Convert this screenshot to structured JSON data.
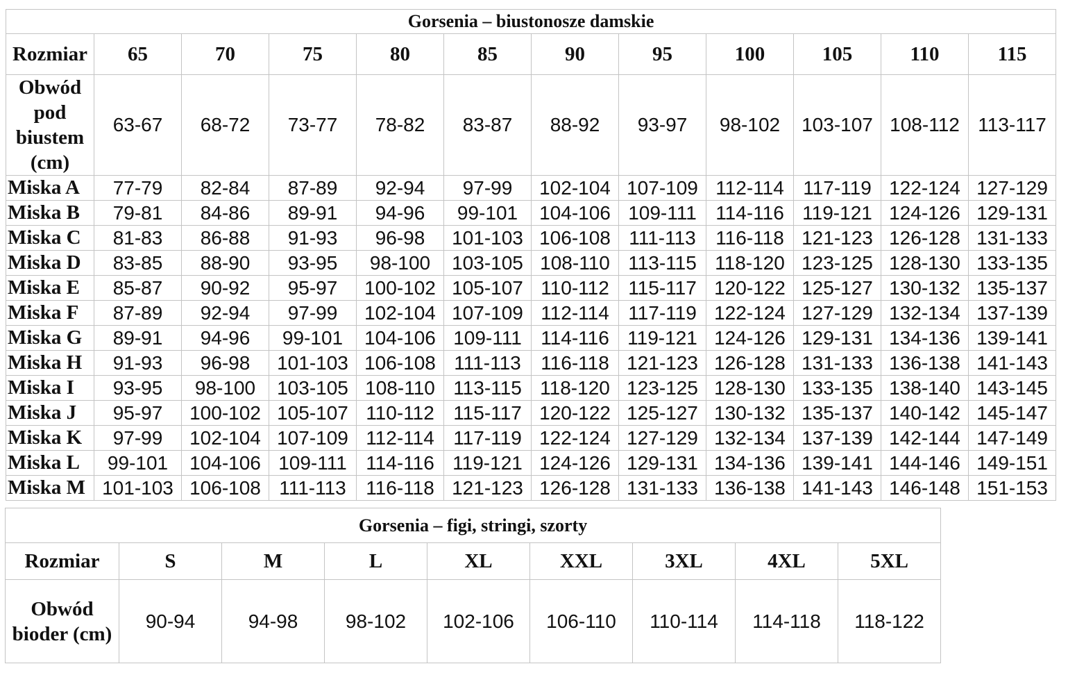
{
  "bras": {
    "title": "Gorsenia – biustonosze damskie",
    "header_label": "Rozmiar",
    "sizes": [
      "65",
      "70",
      "75",
      "80",
      "85",
      "90",
      "95",
      "100",
      "105",
      "110",
      "115"
    ],
    "underbust_label": "Obwód pod biustem (cm)",
    "underbust": [
      "63-67",
      "68-72",
      "73-77",
      "78-82",
      "83-87",
      "88-92",
      "93-97",
      "98-102",
      "103-107",
      "108-112",
      "113-117"
    ],
    "cups": [
      {
        "label": "Miska A",
        "values": [
          "77-79",
          "82-84",
          "87-89",
          "92-94",
          "97-99",
          "102-104",
          "107-109",
          "112-114",
          "117-119",
          "122-124",
          "127-129"
        ]
      },
      {
        "label": "Miska B",
        "values": [
          "79-81",
          "84-86",
          "89-91",
          "94-96",
          "99-101",
          "104-106",
          "109-111",
          "114-116",
          "119-121",
          "124-126",
          "129-131"
        ]
      },
      {
        "label": "Miska C",
        "values": [
          "81-83",
          "86-88",
          "91-93",
          "96-98",
          "101-103",
          "106-108",
          "111-113",
          "116-118",
          "121-123",
          "126-128",
          "131-133"
        ]
      },
      {
        "label": "Miska D",
        "values": [
          "83-85",
          "88-90",
          "93-95",
          "98-100",
          "103-105",
          "108-110",
          "113-115",
          "118-120",
          "123-125",
          "128-130",
          "133-135"
        ]
      },
      {
        "label": "Miska E",
        "values": [
          "85-87",
          "90-92",
          "95-97",
          "100-102",
          "105-107",
          "110-112",
          "115-117",
          "120-122",
          "125-127",
          "130-132",
          "135-137"
        ]
      },
      {
        "label": "Miska F",
        "values": [
          "87-89",
          "92-94",
          "97-99",
          "102-104",
          "107-109",
          "112-114",
          "117-119",
          "122-124",
          "127-129",
          "132-134",
          "137-139"
        ]
      },
      {
        "label": "Miska G",
        "values": [
          "89-91",
          "94-96",
          "99-101",
          "104-106",
          "109-111",
          "114-116",
          "119-121",
          "124-126",
          "129-131",
          "134-136",
          "139-141"
        ]
      },
      {
        "label": "Miska H",
        "values": [
          "91-93",
          "96-98",
          "101-103",
          "106-108",
          "111-113",
          "116-118",
          "121-123",
          "126-128",
          "131-133",
          "136-138",
          "141-143"
        ]
      },
      {
        "label": "Miska I",
        "values": [
          "93-95",
          "98-100",
          "103-105",
          "108-110",
          "113-115",
          "118-120",
          "123-125",
          "128-130",
          "133-135",
          "138-140",
          "143-145"
        ]
      },
      {
        "label": "Miska J",
        "values": [
          "95-97",
          "100-102",
          "105-107",
          "110-112",
          "115-117",
          "120-122",
          "125-127",
          "130-132",
          "135-137",
          "140-142",
          "145-147"
        ]
      },
      {
        "label": "Miska K",
        "values": [
          "97-99",
          "102-104",
          "107-109",
          "112-114",
          "117-119",
          "122-124",
          "127-129",
          "132-134",
          "137-139",
          "142-144",
          "147-149"
        ]
      },
      {
        "label": "Miska L",
        "values": [
          "99-101",
          "104-106",
          "109-111",
          "114-116",
          "119-121",
          "124-126",
          "129-131",
          "134-136",
          "139-141",
          "144-146",
          "149-151"
        ]
      },
      {
        "label": "Miska M",
        "values": [
          "101-103",
          "106-108",
          "111-113",
          "116-118",
          "121-123",
          "126-128",
          "131-133",
          "136-138",
          "141-143",
          "146-148",
          "151-153"
        ]
      }
    ]
  },
  "briefs": {
    "title": "Gorsenia – figi, stringi, szorty",
    "header_label": "Rozmiar",
    "sizes": [
      "S",
      "M",
      "L",
      "XL",
      "XXL",
      "3XL",
      "4XL",
      "5XL"
    ],
    "hips_label": "Obwód bioder (cm)",
    "hips": [
      "90-94",
      "94-98",
      "98-102",
      "102-106",
      "106-110",
      "110-114",
      "114-118",
      "118-122"
    ]
  }
}
